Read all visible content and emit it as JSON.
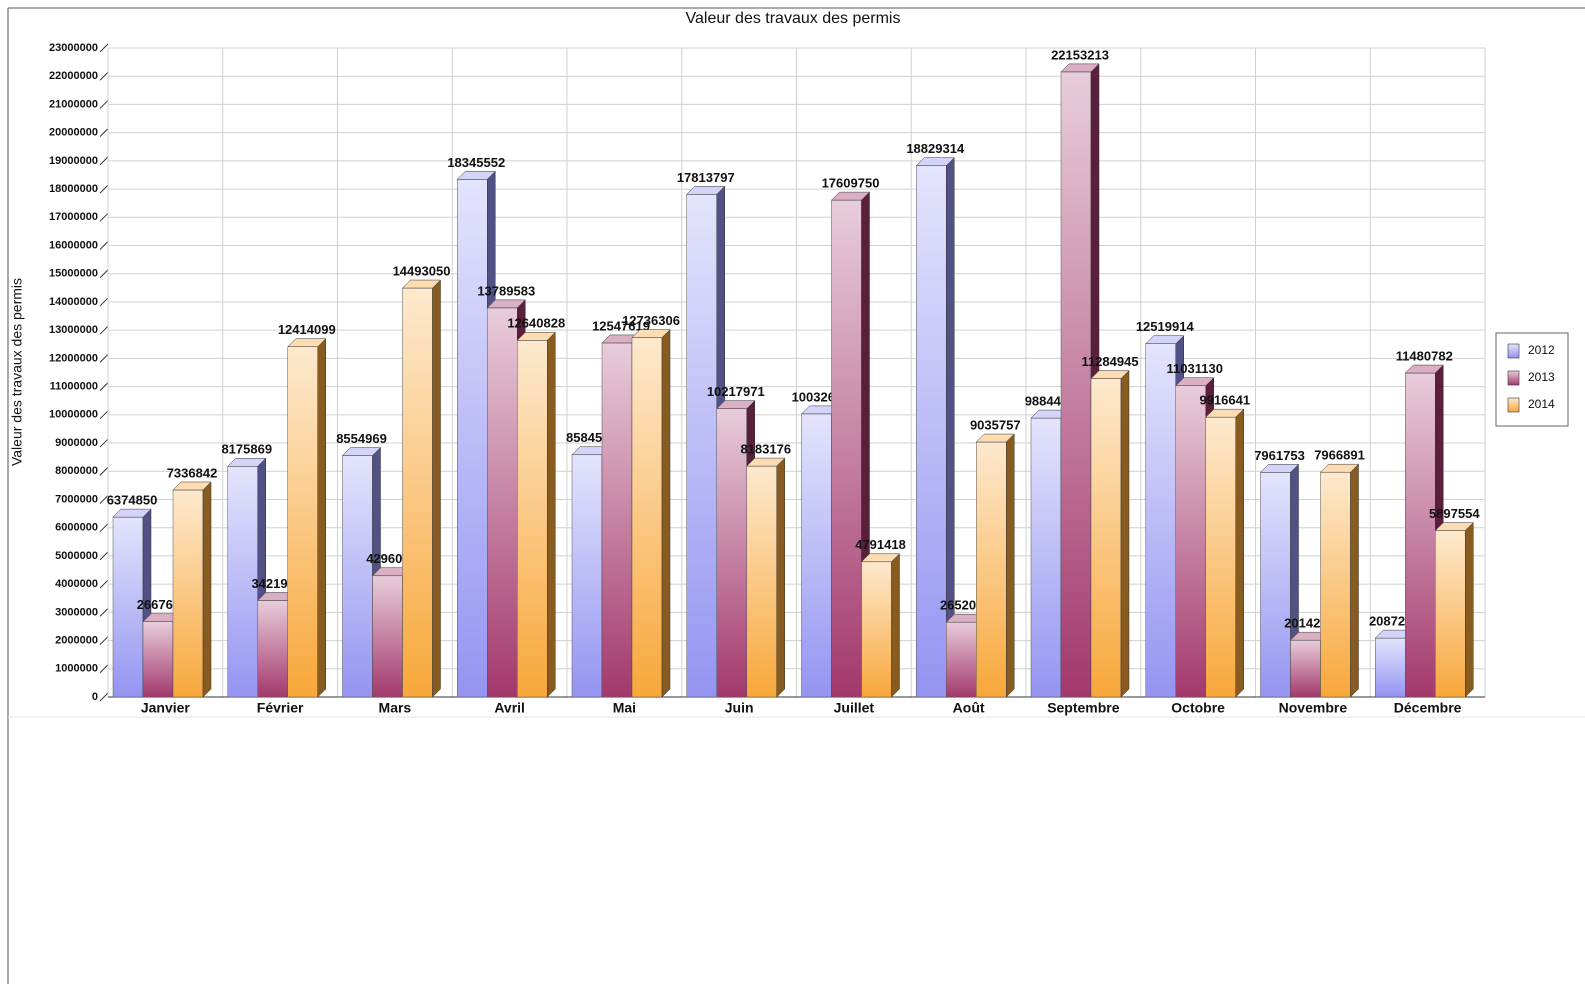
{
  "chart_data": {
    "type": "bar3d",
    "title": "Valeur des travaux des permis",
    "y_label": "Valeur des travaux des permis",
    "categories": [
      "Janvier",
      "Février",
      "Mars",
      "Avril",
      "Mai",
      "Juin",
      "Juillet",
      "Août",
      "Septembre",
      "Octobre",
      "Novembre",
      "Décembre"
    ],
    "series": [
      {
        "name": "2012",
        "color": "#9494f2",
        "values": [
          6374850,
          8175869,
          8554969,
          18345552,
          8584511,
          17813797,
          10032639,
          18829314,
          9884468,
          12519914,
          7961753,
          2087241
        ]
      },
      {
        "name": "2013",
        "color": "#a3386c",
        "values": [
          2667618,
          3421933,
          4296005,
          13789583,
          12547619,
          10217971,
          17609750,
          2652062,
          22153213,
          11031130,
          2014256,
          11480782
        ]
      },
      {
        "name": "2014",
        "color": "#f8a73a",
        "values": [
          7336842,
          12414099,
          14493050,
          12640828,
          12736306,
          8183176,
          4791418,
          9035757,
          11284945,
          9916641,
          7966891,
          5897554
        ]
      }
    ],
    "ylim": [
      0,
      23000000
    ],
    "yticks": [
      0,
      1000000,
      2000000,
      3000000,
      4000000,
      5000000,
      6000000,
      7000000,
      8000000,
      9000000,
      10000000,
      11000000,
      12000000,
      13000000,
      14000000,
      15000000,
      16000000,
      17000000,
      18000000,
      19000000,
      20000000,
      21000000,
      22000000,
      23000000
    ],
    "grid": true,
    "legend": "right"
  }
}
